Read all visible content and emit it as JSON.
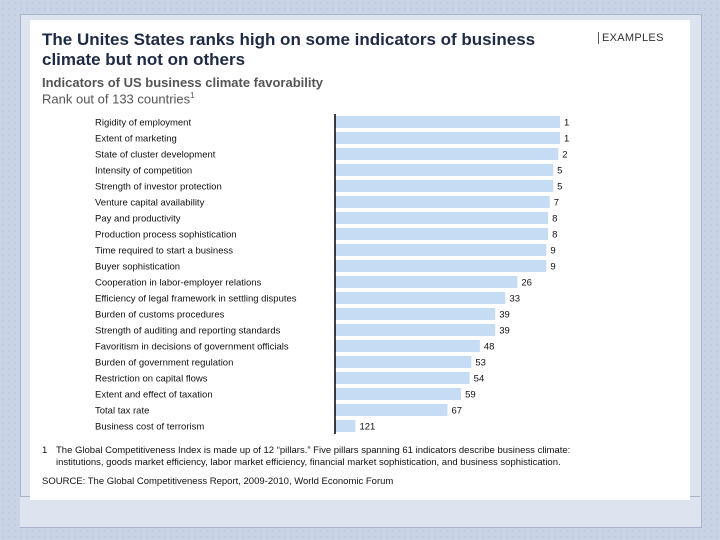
{
  "header": {
    "title": "The Unites States ranks high on some indicators of business climate but not on others",
    "examples_label": "EXAMPLES"
  },
  "chart_data": {
    "type": "bar",
    "orientation": "horizontal",
    "title": "Indicators of US business climate favorability",
    "subtitle": "Rank out of 133 countries",
    "subtitle_footnote_marker": "1",
    "categories": [
      "Rigidity of employment",
      "Extent of marketing",
      "State of cluster development",
      "Intensity of competition",
      "Strength of investor protection",
      "Venture capital availability",
      "Pay and productivity",
      "Production process sophistication",
      "Time required to start a business",
      "Buyer sophistication",
      "Cooperation in labor-employer relations",
      "Efficiency of legal framework in settling disputes",
      "Burden of customs procedures",
      "Strength of auditing and reporting standards",
      "Favoritism in decisions of government officials",
      "Burden of government regulation",
      "Restriction on capital flows",
      "Extent and effect of taxation",
      "Total tax rate",
      "Business cost of terrorism"
    ],
    "values": [
      1,
      1,
      2,
      5,
      5,
      7,
      8,
      8,
      9,
      9,
      26,
      33,
      39,
      39,
      48,
      53,
      54,
      59,
      67,
      121
    ],
    "xlim": [
      133,
      1
    ],
    "bar_color": "#c6dcf5",
    "axis_color": "#000000"
  },
  "footnote": {
    "marker": "1",
    "line1": "The Global Competitiveness Index is made up of 12 “pillars.” Five pillars spanning 61 indicators describe business climate:",
    "line2": "institutions, goods market efficiency, labor market efficiency, financial market sophistication, and business sophistication."
  },
  "source": "SOURCE: The Global Competitiveness Report, 2009-2010, World Economic Forum"
}
